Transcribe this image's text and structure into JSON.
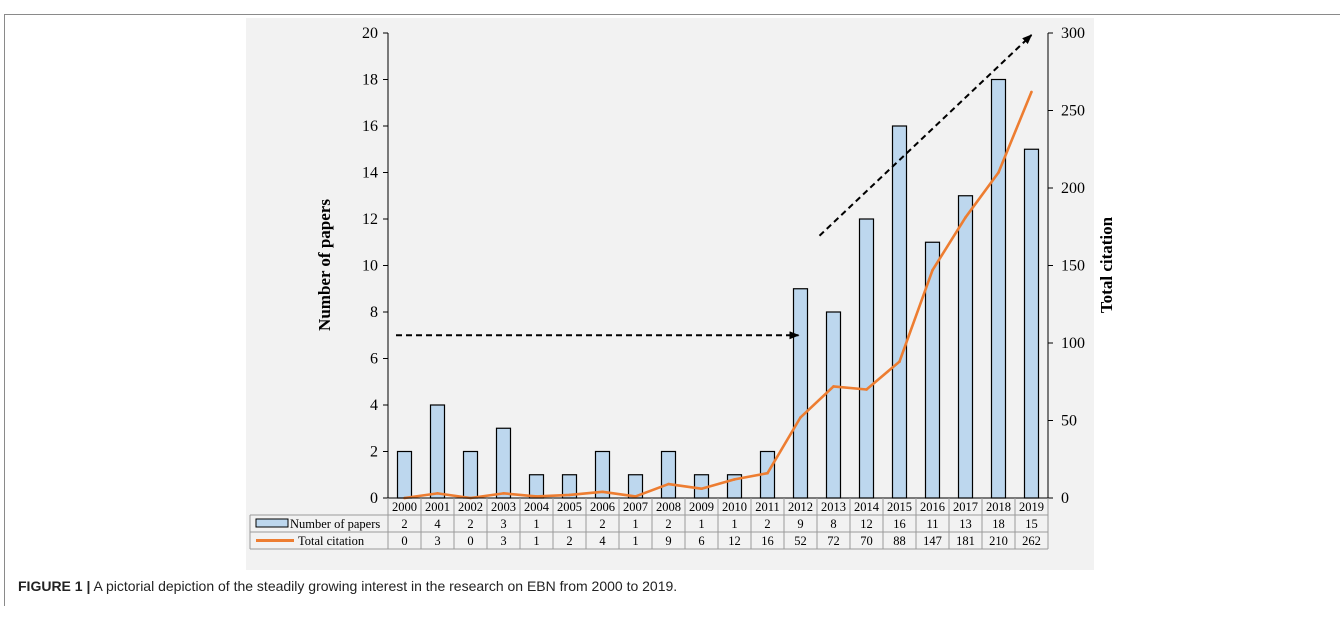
{
  "figure": {
    "label": "FIGURE 1 |",
    "caption": "A pictorial depiction of the steadily growing interest in the research on EBN from 2000 to 2019."
  },
  "chart_data": {
    "type": "bar",
    "categories": [
      "2000",
      "2001",
      "2002",
      "2003",
      "2004",
      "2005",
      "2006",
      "2007",
      "2008",
      "2009",
      "2010",
      "2011",
      "2012",
      "2013",
      "2014",
      "2015",
      "2016",
      "2017",
      "2018",
      "2019"
    ],
    "series": [
      {
        "name": "Number of papers",
        "type": "bar",
        "axis": "left",
        "color": "#bdd7ee",
        "values": [
          2,
          4,
          2,
          3,
          1,
          1,
          2,
          1,
          2,
          1,
          1,
          2,
          9,
          8,
          12,
          16,
          11,
          13,
          18,
          15
        ]
      },
      {
        "name": "Total citation",
        "type": "line",
        "axis": "right",
        "color": "#ed7d31",
        "values": [
          0,
          3,
          0,
          3,
          1,
          2,
          4,
          1,
          9,
          6,
          12,
          16,
          52,
          72,
          70,
          88,
          147,
          181,
          210,
          262
        ]
      }
    ],
    "ylabel": "Number of papers",
    "y2label": "Total citation",
    "ylim": [
      0,
      20
    ],
    "y2lim": [
      0,
      300
    ],
    "yticks": [
      0,
      2,
      4,
      6,
      8,
      10,
      12,
      14,
      16,
      18,
      20
    ],
    "y2ticks": [
      0,
      50,
      100,
      150,
      200,
      250,
      300
    ],
    "grid": false,
    "legend": "data-table-below",
    "annotations": [
      {
        "type": "dashed-arrow",
        "from": [
          "2000",
          7
        ],
        "to": [
          "2012",
          7
        ]
      },
      {
        "type": "dashed-arrow",
        "from": [
          "2013",
          13
        ],
        "to": [
          "2019",
          20
        ]
      }
    ]
  }
}
